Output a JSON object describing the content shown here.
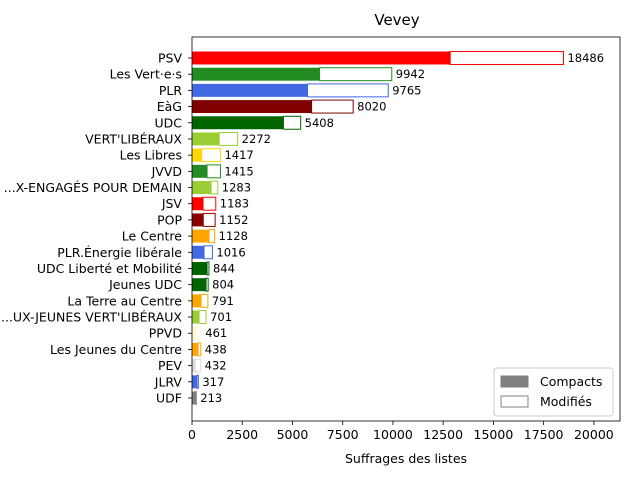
{
  "chart_data": {
    "type": "bar",
    "orientation": "horizontal",
    "stacked": true,
    "title": "Vevey",
    "xlabel": "Suffrages des listes",
    "ylabel": "",
    "xlim": [
      0,
      21300
    ],
    "xticks": [
      0,
      2500,
      5000,
      7500,
      10000,
      12500,
      15000,
      17500,
      20000
    ],
    "grid": false,
    "legend_position": "bottom-right",
    "legend": [
      {
        "name": "Compacts",
        "style": "filled",
        "color": "#808080"
      },
      {
        "name": "Modifiés",
        "style": "outline",
        "color": "#808080"
      }
    ],
    "categories": [
      "PSV",
      "Les Vert·e·s",
      "PLR",
      "EàG",
      "UDC",
      "VERT'LIBÉRAUX",
      "Les Libres",
      "JVVD",
      "...X-ENGAGÉS POUR DEMAIN",
      "JSV",
      "POP",
      "Le Centre",
      "PLR.Énergie libérale",
      "UDC Liberté et Mobilité",
      "Jeunes UDC",
      "La Terre au Centre",
      "...UX-JEUNES VERT'LIBÉRAUX",
      "PPVD",
      "Les Jeunes du Centre",
      "PEV",
      "JLRV",
      "UDF"
    ],
    "compacts": [
      12850,
      6350,
      5750,
      5950,
      4550,
      1350,
      480,
      750,
      950,
      550,
      560,
      850,
      600,
      750,
      700,
      450,
      350,
      180,
      300,
      150,
      250,
      190
    ],
    "totals": [
      18486,
      9942,
      9765,
      8020,
      5408,
      2272,
      1417,
      1415,
      1283,
      1183,
      1152,
      1128,
      1016,
      844,
      804,
      791,
      701,
      461,
      438,
      432,
      317,
      213
    ],
    "total_labels": [
      "18486",
      "9942",
      "9765",
      "8020",
      "5408",
      "2272",
      "1417",
      "1415",
      "1283",
      "1183",
      "1152",
      "1128",
      "1016",
      "844",
      "804",
      "791",
      "701",
      "461",
      "438",
      "432",
      "317",
      "213"
    ],
    "colors": [
      "#ff0000",
      "#228b22",
      "#4169e1",
      "#800000",
      "#006400",
      "#9acd32",
      "#ffd700",
      "#228b22",
      "#9acd32",
      "#ff0000",
      "#8b0000",
      "#ffa500",
      "#4169e1",
      "#006400",
      "#006400",
      "#ffa500",
      "#9acd32",
      "#fffacd",
      "#ffa500",
      "#dcdcdc",
      "#4169e1",
      "#808080"
    ]
  }
}
